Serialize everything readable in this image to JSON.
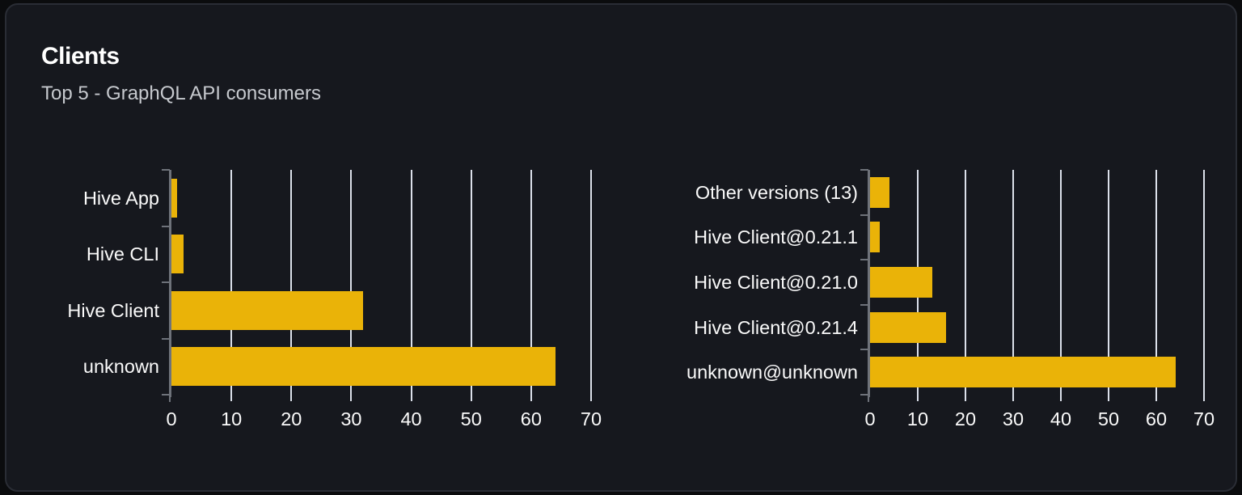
{
  "card": {
    "title": "Clients",
    "subtitle": "Top 5 - GraphQL API consumers"
  },
  "colors": {
    "page_bg": "#0b0c0e",
    "card_bg": "#16181e",
    "card_border": "#2a2d35",
    "title": "#ffffff",
    "subtitle": "#c6c9ce",
    "text": "#fafafa",
    "bar": "#eab308",
    "grid": "#dbe0ea",
    "axis": "#6e727a"
  },
  "chart_data": [
    {
      "type": "bar",
      "orientation": "horizontal",
      "name": "clients-by-name",
      "categories": [
        "Hive App",
        "Hive CLI",
        "Hive Client",
        "unknown"
      ],
      "values": [
        1,
        2,
        32,
        64
      ],
      "x_ticks": [
        0,
        10,
        20,
        30,
        40,
        50,
        60,
        70
      ],
      "xlim": [
        0,
        70
      ],
      "xlabel": "",
      "ylabel": "",
      "grid": true,
      "legend": false
    },
    {
      "type": "bar",
      "orientation": "horizontal",
      "name": "clients-by-version",
      "categories": [
        "Other versions (13)",
        "Hive Client@0.21.1",
        "Hive Client@0.21.0",
        "Hive Client@0.21.4",
        "unknown@unknown"
      ],
      "values": [
        4,
        2,
        13,
        16,
        64
      ],
      "x_ticks": [
        0,
        10,
        20,
        30,
        40,
        50,
        60,
        70
      ],
      "xlim": [
        0,
        70
      ],
      "xlabel": "",
      "ylabel": "",
      "grid": true,
      "legend": false
    }
  ]
}
